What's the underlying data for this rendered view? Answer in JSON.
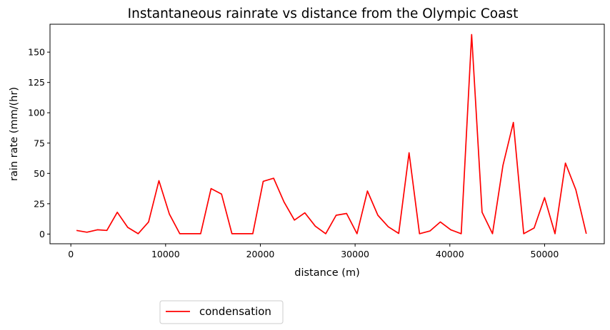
{
  "chart_data": {
    "type": "line",
    "title": "Instantaneous rainrate vs distance from the Olympic Coast",
    "xlabel": "distance (m)",
    "ylabel": "rain rate (mm/(hr)",
    "xlim": [
      -2200,
      56300
    ],
    "ylim": [
      -8,
      173
    ],
    "xticks": [
      0,
      10000,
      20000,
      30000,
      40000,
      50000
    ],
    "xtick_labels": [
      "0",
      "10000",
      "20000",
      "30000",
      "40000",
      "50000"
    ],
    "yticks": [
      0,
      25,
      50,
      75,
      100,
      125,
      150
    ],
    "ytick_labels": [
      "0",
      "25",
      "50",
      "75",
      "100",
      "125",
      "150"
    ],
    "grid": false,
    "legend_position": "below-left",
    "series": [
      {
        "name": "condensation",
        "color": "#ff0000",
        "x": [
          600,
          1700,
          2800,
          3800,
          4900,
          6000,
          7100,
          8200,
          9300,
          10400,
          11500,
          12600,
          13700,
          14800,
          15900,
          17000,
          18100,
          19200,
          20300,
          21400,
          22500,
          23600,
          24700,
          25800,
          26900,
          28000,
          29100,
          30200,
          31300,
          32400,
          33500,
          34600,
          35700,
          36800,
          37900,
          39000,
          40100,
          41200,
          42300,
          43400,
          44500,
          45600,
          46700,
          47800,
          48900,
          50000,
          51100,
          52200,
          53300,
          54400
        ],
        "y": [
          3,
          1.5,
          3.5,
          3,
          18,
          5.5,
          0.3,
          10,
          44,
          16.5,
          0.3,
          0.3,
          0.3,
          37.5,
          33,
          0.3,
          0.3,
          0.3,
          43.5,
          46,
          26.5,
          11.5,
          17.5,
          6.5,
          0.3,
          15.5,
          17,
          0.3,
          35.5,
          15.5,
          6,
          0.5,
          67,
          0.3,
          2.5,
          10,
          3.5,
          0.3,
          164.5,
          18,
          0.3,
          56.5,
          92,
          0.3,
          5,
          30,
          0.3,
          58.5,
          36.5,
          0.3
        ]
      }
    ]
  }
}
